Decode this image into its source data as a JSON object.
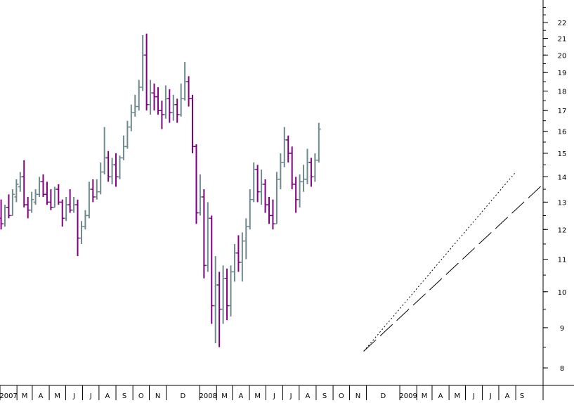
{
  "chart_data": {
    "type": "ohlc-bar",
    "title": "",
    "xlabel": "",
    "ylabel": "",
    "y_scale": "log",
    "ylim": [
      7.6,
      23.5
    ],
    "y_ticks": [
      8,
      9,
      10,
      11,
      12,
      13,
      14,
      15,
      16,
      17,
      18,
      19,
      20,
      21,
      22
    ],
    "x_range": [
      "2007-01-01",
      "2009-09-20"
    ],
    "x_ticks": [
      {
        "date": "2007-01-01",
        "label": "2007"
      },
      {
        "date": "2007-02-01",
        "label": "M"
      },
      {
        "date": "2007-03-01",
        "label": "A"
      },
      {
        "date": "2007-04-01",
        "label": "M"
      },
      {
        "date": "2007-05-01",
        "label": "J"
      },
      {
        "date": "2007-06-01",
        "label": "J"
      },
      {
        "date": "2007-07-01",
        "label": "A"
      },
      {
        "date": "2007-08-01",
        "label": "S"
      },
      {
        "date": "2007-09-01",
        "label": "O"
      },
      {
        "date": "2007-10-01",
        "label": "N"
      },
      {
        "date": "2007-11-01",
        "label": "D"
      },
      {
        "date": "2008-01-01",
        "label": "2008"
      },
      {
        "date": "2008-02-01",
        "label": "M"
      },
      {
        "date": "2008-03-01",
        "label": "A"
      },
      {
        "date": "2008-04-01",
        "label": "M"
      },
      {
        "date": "2008-05-01",
        "label": "J"
      },
      {
        "date": "2008-06-01",
        "label": "J"
      },
      {
        "date": "2008-07-01",
        "label": "A"
      },
      {
        "date": "2008-08-01",
        "label": "S"
      },
      {
        "date": "2008-09-01",
        "label": "O"
      },
      {
        "date": "2008-10-01",
        "label": "N"
      },
      {
        "date": "2008-11-01",
        "label": "D"
      },
      {
        "date": "2009-01-01",
        "label": "2009"
      },
      {
        "date": "2009-02-01",
        "label": "M"
      },
      {
        "date": "2009-03-01",
        "label": "A"
      },
      {
        "date": "2009-04-01",
        "label": "M"
      },
      {
        "date": "2009-05-01",
        "label": "J"
      },
      {
        "date": "2009-06-01",
        "label": "J"
      },
      {
        "date": "2009-07-01",
        "label": "A"
      },
      {
        "date": "2009-08-01",
        "label": "S"
      }
    ],
    "colors": {
      "up": "#6f8a8f",
      "down": "#800080",
      "axis": "#000000",
      "trendline": "#000000"
    },
    "series": [
      {
        "values": [
          [
            12.4,
            13.1,
            12.0,
            12.2
          ],
          [
            12.2,
            12.9,
            12.1,
            12.8
          ],
          [
            12.8,
            13.3,
            12.4,
            12.5
          ],
          [
            12.5,
            13.5,
            12.5,
            13.3
          ],
          [
            13.2,
            13.9,
            13.0,
            13.7
          ],
          [
            13.6,
            14.2,
            13.4,
            14.0
          ],
          [
            14.0,
            14.7,
            12.8,
            12.9
          ],
          [
            12.9,
            13.2,
            12.4,
            12.7
          ],
          [
            12.7,
            13.4,
            12.6,
            13.1
          ],
          [
            13.0,
            13.5,
            12.9,
            13.3
          ],
          [
            13.3,
            14.0,
            13.2,
            13.8
          ],
          [
            13.8,
            14.1,
            13.2,
            13.3
          ],
          [
            13.3,
            13.8,
            12.9,
            13.0
          ],
          [
            13.0,
            13.5,
            12.7,
            12.8
          ],
          [
            12.8,
            13.6,
            12.8,
            13.5
          ],
          [
            13.5,
            13.7,
            12.9,
            13.0
          ],
          [
            13.0,
            13.1,
            12.1,
            12.4
          ],
          [
            12.4,
            13.2,
            12.3,
            12.9
          ],
          [
            12.9,
            13.5,
            12.6,
            12.7
          ],
          [
            12.7,
            13.2,
            12.6,
            12.9
          ],
          [
            12.9,
            13.1,
            11.1,
            11.7
          ],
          [
            11.7,
            12.3,
            11.5,
            12.1
          ],
          [
            12.1,
            12.7,
            12.0,
            12.5
          ],
          [
            12.5,
            13.8,
            12.4,
            13.5
          ],
          [
            13.5,
            13.9,
            13.0,
            13.2
          ],
          [
            13.2,
            13.9,
            13.1,
            13.4
          ],
          [
            13.4,
            14.6,
            13.3,
            14.2
          ],
          [
            14.2,
            16.2,
            14.1,
            14.8
          ],
          [
            14.8,
            15.1,
            13.8,
            14.0
          ],
          [
            14.0,
            14.8,
            13.7,
            14.5
          ],
          [
            14.5,
            15.0,
            13.6,
            14.0
          ],
          [
            14.0,
            14.9,
            13.9,
            14.8
          ],
          [
            14.8,
            15.8,
            14.7,
            15.3
          ],
          [
            15.3,
            16.5,
            15.2,
            16.2
          ],
          [
            16.2,
            17.3,
            16.0,
            16.9
          ],
          [
            16.9,
            17.8,
            16.7,
            17.2
          ],
          [
            17.2,
            18.6,
            17.0,
            18.2
          ],
          [
            18.2,
            21.2,
            18.0,
            20.0
          ],
          [
            20.0,
            21.3,
            17.0,
            17.3
          ],
          [
            17.3,
            18.6,
            16.8,
            17.9
          ],
          [
            17.9,
            18.4,
            17.0,
            17.7
          ],
          [
            17.7,
            18.2,
            16.8,
            17.0
          ],
          [
            17.0,
            17.5,
            16.1,
            16.8
          ],
          [
            16.8,
            18.3,
            16.6,
            17.6
          ],
          [
            17.6,
            18.1,
            16.4,
            16.9
          ],
          [
            16.9,
            17.8,
            16.5,
            17.3
          ],
          [
            17.3,
            17.6,
            16.4,
            16.8
          ],
          [
            16.8,
            18.4,
            16.7,
            17.6
          ],
          [
            17.6,
            19.6,
            17.5,
            18.5
          ],
          [
            18.5,
            18.8,
            17.2,
            17.6
          ],
          [
            17.6,
            17.8,
            15.0,
            15.3
          ],
          [
            15.3,
            15.4,
            12.2,
            12.6
          ],
          [
            12.6,
            14.1,
            12.5,
            13.2
          ],
          [
            13.2,
            13.5,
            10.4,
            10.8
          ],
          [
            10.8,
            13.0,
            10.6,
            12.4
          ],
          [
            12.4,
            12.5,
            9.1,
            9.6
          ],
          [
            9.6,
            11.1,
            8.6,
            10.2
          ],
          [
            10.2,
            10.6,
            8.5,
            9.5
          ],
          [
            9.5,
            10.8,
            9.1,
            10.4
          ],
          [
            10.4,
            10.7,
            9.2,
            9.6
          ],
          [
            9.6,
            10.8,
            9.3,
            10.6
          ],
          [
            10.6,
            11.5,
            10.3,
            11.2
          ],
          [
            11.2,
            11.8,
            10.6,
            10.9
          ],
          [
            10.9,
            11.9,
            10.3,
            11.6
          ],
          [
            11.6,
            12.4,
            11.0,
            12.1
          ],
          [
            12.1,
            13.5,
            12.0,
            13.1
          ],
          [
            13.1,
            14.6,
            13.0,
            14.3
          ],
          [
            14.3,
            14.5,
            13.0,
            13.4
          ],
          [
            13.4,
            14.3,
            12.9,
            13.7
          ],
          [
            13.7,
            13.9,
            12.6,
            12.9
          ],
          [
            12.9,
            13.2,
            12.2,
            12.5
          ],
          [
            12.5,
            13.1,
            12.0,
            12.2
          ],
          [
            12.2,
            14.2,
            12.2,
            13.9
          ],
          [
            13.9,
            15.0,
            13.5,
            14.6
          ],
          [
            14.6,
            16.2,
            14.4,
            15.6
          ],
          [
            15.6,
            15.8,
            14.6,
            15.0
          ],
          [
            15.0,
            15.3,
            13.5,
            13.7
          ],
          [
            13.7,
            14.0,
            12.6,
            13.1
          ],
          [
            13.1,
            14.1,
            12.8,
            13.8
          ],
          [
            13.8,
            14.5,
            13.4,
            13.9
          ],
          [
            13.9,
            15.2,
            13.7,
            14.6
          ],
          [
            14.6,
            14.8,
            13.6,
            14.0
          ],
          [
            14.0,
            15.0,
            13.8,
            14.7
          ],
          [
            14.7,
            16.4,
            14.6,
            16.1
          ]
        ]
      }
    ],
    "trendlines": [
      {
        "style": "dotted",
        "from": {
          "x": "2008-10-27",
          "y": 8.4
        },
        "to": {
          "x": "2009-08-01",
          "y": 14.2
        }
      },
      {
        "style": "dashed",
        "from": {
          "x": "2008-10-27",
          "y": 8.4
        },
        "to": {
          "x": "2009-09-20",
          "y": 13.7
        }
      }
    ]
  }
}
